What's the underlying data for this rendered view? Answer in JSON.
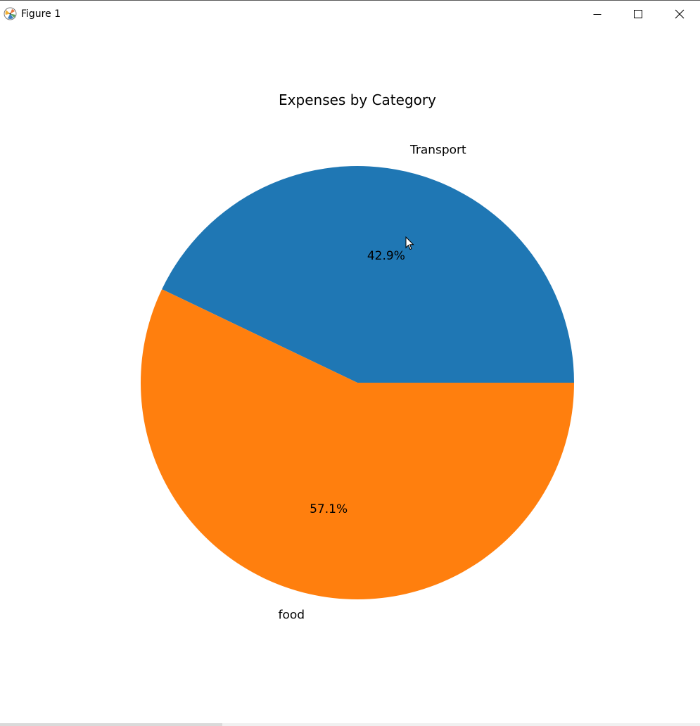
{
  "window": {
    "title": "Figure 1",
    "controls": {
      "minimize_icon": "minimize-icon",
      "maximize_icon": "maximize-icon",
      "close_icon": "close-icon"
    }
  },
  "chart_data": {
    "type": "pie",
    "title": "Expenses by Category",
    "categories": [
      "Transport",
      "food"
    ],
    "values": [
      42.9,
      57.1
    ],
    "percent_labels": [
      "42.9%",
      "57.1%"
    ],
    "colors": [
      "#1f77b4",
      "#ff7f0e"
    ],
    "start_angle_deg": 0,
    "direction": "counterclockwise"
  }
}
